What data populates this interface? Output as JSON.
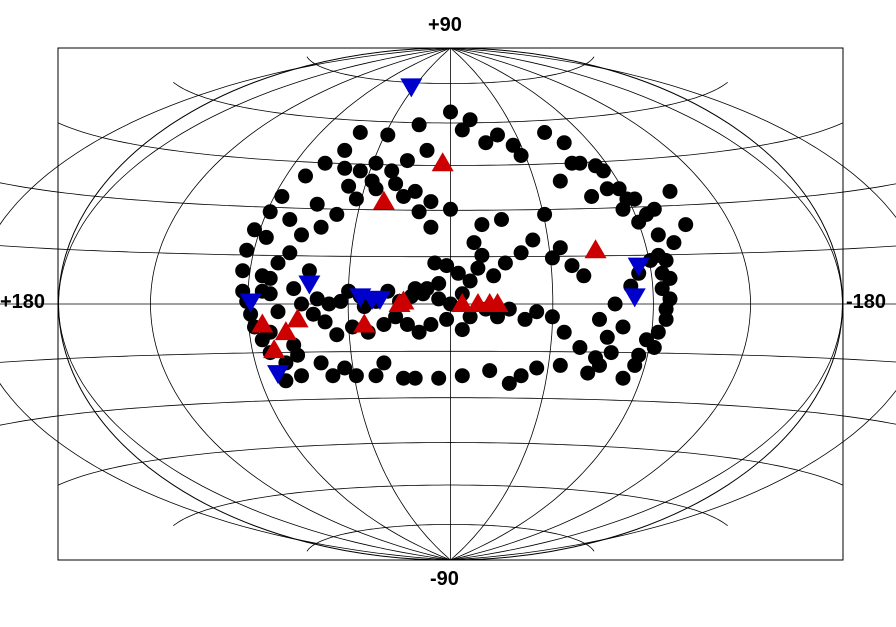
{
  "chart_data": {
    "type": "scatter",
    "projection": "aitoff-hammer",
    "grid": true,
    "axis_labels": {
      "top": "+90",
      "bottom": "-90",
      "left": "+180",
      "right": "-180"
    },
    "graticule": {
      "parallels": [
        -75,
        -60,
        -45,
        -30,
        -15,
        0,
        15,
        30,
        45,
        60,
        75
      ],
      "meridians": [
        -150,
        -120,
        -90,
        -60,
        -30,
        0,
        30,
        60,
        90,
        120,
        150
      ]
    },
    "series": [
      {
        "marker": "circle",
        "color": "#000000",
        "points": [
          [
            -0.52,
            0.01
          ],
          [
            -0.51,
            -0.04
          ],
          [
            -0.5,
            -0.09
          ],
          [
            -0.48,
            -0.14
          ],
          [
            -0.46,
            -0.19
          ],
          [
            -0.39,
            -0.2
          ],
          [
            -0.42,
            -0.23
          ],
          [
            -0.42,
            -0.3
          ],
          [
            -0.38,
            -0.28
          ],
          [
            -0.3,
            -0.28
          ],
          [
            -0.24,
            -0.28
          ],
          [
            -0.19,
            -0.28
          ],
          [
            -0.17,
            -0.23
          ],
          [
            -0.12,
            -0.29
          ],
          [
            -0.09,
            -0.29
          ],
          [
            -0.03,
            -0.29
          ],
          [
            0.03,
            -0.28
          ],
          [
            0.1,
            -0.26
          ],
          [
            0.15,
            -0.31
          ],
          [
            0.18,
            -0.28
          ],
          [
            0.22,
            -0.25
          ],
          [
            0.28,
            -0.24
          ],
          [
            0.35,
            -0.27
          ],
          [
            0.38,
            -0.24
          ],
          [
            0.44,
            -0.29
          ],
          [
            0.48,
            -0.2
          ],
          [
            0.5,
            -0.14
          ],
          [
            0.53,
            -0.11
          ],
          [
            0.55,
            -0.02
          ],
          [
            0.54,
            0.06
          ],
          [
            0.54,
            0.12
          ],
          [
            0.53,
            0.19
          ],
          [
            0.53,
            0.27
          ],
          [
            0.5,
            0.35
          ],
          [
            0.47,
            0.41
          ],
          [
            0.43,
            0.45
          ],
          [
            0.39,
            0.52
          ],
          [
            0.33,
            0.55
          ],
          [
            0.29,
            0.63
          ],
          [
            0.24,
            0.67
          ],
          [
            0.16,
            0.62
          ],
          [
            0.12,
            0.66
          ],
          [
            0.05,
            0.72
          ],
          [
            0.0,
            0.75
          ],
          [
            -0.08,
            0.7
          ],
          [
            -0.16,
            0.66
          ],
          [
            -0.23,
            0.67
          ],
          [
            -0.27,
            0.6
          ],
          [
            -0.32,
            0.55
          ],
          [
            -0.37,
            0.5
          ],
          [
            -0.43,
            0.42
          ],
          [
            -0.46,
            0.36
          ],
          [
            -0.5,
            0.29
          ],
          [
            -0.52,
            0.21
          ],
          [
            -0.53,
            0.13
          ],
          [
            -0.53,
            0.05
          ],
          [
            -0.27,
            0.53
          ],
          [
            -0.23,
            0.52
          ],
          [
            -0.19,
            0.45
          ],
          [
            -0.14,
            0.47
          ],
          [
            -0.09,
            0.44
          ],
          [
            -0.05,
            0.4
          ],
          [
            0.0,
            0.37
          ],
          [
            0.08,
            0.31
          ],
          [
            0.13,
            0.33
          ],
          [
            0.24,
            0.35
          ],
          [
            0.28,
            0.48
          ],
          [
            0.31,
            0.55
          ],
          [
            0.37,
            0.54
          ],
          [
            0.4,
            0.45
          ],
          [
            0.45,
            0.41
          ],
          [
            -0.36,
            0.13
          ],
          [
            -0.4,
            0.06
          ],
          [
            -0.38,
            0.0
          ],
          [
            -0.34,
            0.02
          ],
          [
            -0.31,
            0.0
          ],
          [
            -0.28,
            0.01
          ],
          [
            -0.26,
            0.05
          ],
          [
            -0.23,
            0.03
          ],
          [
            -0.22,
            -0.01
          ],
          [
            -0.19,
            0.01
          ],
          [
            -0.16,
            0.05
          ],
          [
            -0.13,
            0.01
          ],
          [
            -0.1,
            0.03
          ],
          [
            -0.07,
            0.04
          ],
          [
            -0.03,
            0.02
          ],
          [
            0.0,
            0.0
          ],
          [
            0.03,
            0.04
          ],
          [
            0.05,
            0.09
          ],
          [
            0.02,
            0.12
          ],
          [
            -0.01,
            0.15
          ],
          [
            -0.04,
            0.16
          ],
          [
            -0.03,
            0.08
          ],
          [
            -0.06,
            0.06
          ],
          [
            -0.09,
            0.06
          ],
          [
            0.07,
            0.14
          ],
          [
            0.08,
            0.19
          ],
          [
            0.06,
            0.24
          ],
          [
            -0.05,
            0.3
          ],
          [
            -0.08,
            0.36
          ],
          [
            -0.12,
            0.42
          ],
          [
            0.38,
            -0.06
          ],
          [
            0.42,
            0.0
          ],
          [
            0.46,
            0.07
          ],
          [
            0.48,
            0.12
          ],
          [
            0.51,
            0.17
          ],
          [
            0.44,
            -0.09
          ],
          [
            0.4,
            -0.13
          ],
          [
            0.41,
            -0.19
          ],
          [
            0.37,
            -0.21
          ],
          [
            0.33,
            -0.17
          ],
          [
            0.29,
            -0.11
          ],
          [
            0.26,
            -0.05
          ],
          [
            0.22,
            -0.03
          ],
          [
            0.19,
            -0.06
          ],
          [
            0.15,
            -0.02
          ],
          [
            0.12,
            -0.05
          ],
          [
            0.09,
            -0.02
          ],
          [
            0.05,
            -0.05
          ],
          [
            0.03,
            -0.1
          ],
          [
            -0.01,
            -0.06
          ],
          [
            -0.05,
            -0.08
          ],
          [
            -0.08,
            -0.11
          ],
          [
            -0.11,
            -0.08
          ],
          [
            -0.14,
            -0.05
          ],
          [
            -0.17,
            -0.08
          ],
          [
            -0.21,
            -0.11
          ],
          [
            -0.25,
            -0.09
          ],
          [
            -0.29,
            -0.12
          ],
          [
            -0.32,
            -0.07
          ],
          [
            -0.35,
            -0.04
          ],
          [
            0.26,
            0.18
          ],
          [
            0.28,
            0.22
          ],
          [
            0.31,
            0.15
          ],
          [
            0.34,
            0.11
          ],
          [
            0.21,
            0.25
          ],
          [
            0.18,
            0.2
          ],
          [
            0.14,
            0.16
          ],
          [
            0.11,
            0.11
          ],
          [
            -0.19,
            0.55
          ],
          [
            -0.26,
            0.46
          ],
          [
            -0.34,
            0.39
          ],
          [
            -0.41,
            0.33
          ],
          [
            -0.47,
            0.26
          ],
          [
            -0.48,
            0.11
          ],
          [
            -0.46,
            0.04
          ],
          [
            -0.44,
            -0.03
          ],
          [
            0.48,
            0.32
          ],
          [
            0.52,
            0.37
          ],
          [
            0.44,
            0.37
          ],
          [
            0.36,
            0.42
          ],
          [
            0.18,
            0.58
          ],
          [
            0.09,
            0.63
          ],
          [
            0.03,
            0.68
          ],
          [
            -0.06,
            0.6
          ],
          [
            -0.11,
            0.56
          ],
          [
            -0.15,
            0.52
          ],
          [
            -0.2,
            0.48
          ],
          [
            -0.24,
            0.41
          ],
          [
            -0.29,
            0.35
          ],
          [
            -0.33,
            0.3
          ],
          [
            -0.38,
            0.27
          ],
          [
            -0.41,
            0.2
          ],
          [
            -0.44,
            0.16
          ],
          [
            -0.46,
            0.1
          ],
          [
            -0.48,
            0.05
          ],
          [
            -0.46,
            -0.11
          ],
          [
            -0.4,
            -0.16
          ],
          [
            -0.33,
            -0.23
          ],
          [
            -0.27,
            -0.25
          ],
          [
            0.47,
            -0.24
          ],
          [
            0.52,
            -0.17
          ],
          [
            0.55,
            -0.06
          ],
          [
            0.56,
            0.02
          ],
          [
            0.56,
            0.1
          ],
          [
            0.55,
            0.17
          ],
          [
            0.57,
            0.24
          ],
          [
            0.6,
            0.31
          ],
          [
            0.56,
            0.44
          ]
        ]
      },
      {
        "marker": "triangle-up",
        "color": "#cc0000",
        "points": [
          [
            -0.48,
            -0.08
          ],
          [
            -0.45,
            -0.18
          ],
          [
            -0.42,
            -0.11
          ],
          [
            -0.39,
            -0.06
          ],
          [
            -0.22,
            -0.08
          ],
          [
            -0.17,
            0.4
          ],
          [
            -0.02,
            0.55
          ],
          [
            0.03,
            0.0
          ],
          [
            0.07,
            0.0
          ],
          [
            0.1,
            0.0
          ],
          [
            0.12,
            0.0
          ],
          [
            -0.12,
            0.01
          ],
          [
            -0.13,
            0.0
          ],
          [
            0.37,
            0.21
          ]
        ]
      },
      {
        "marker": "triangle-down",
        "color": "#0000cc",
        "points": [
          [
            -0.51,
            0.01
          ],
          [
            -0.44,
            -0.27
          ],
          [
            -0.36,
            0.08
          ],
          [
            -0.23,
            0.03
          ],
          [
            -0.2,
            0.02
          ],
          [
            -0.18,
            0.02
          ],
          [
            -0.1,
            0.85
          ],
          [
            0.48,
            0.15
          ],
          [
            0.47,
            0.03
          ]
        ]
      }
    ]
  }
}
